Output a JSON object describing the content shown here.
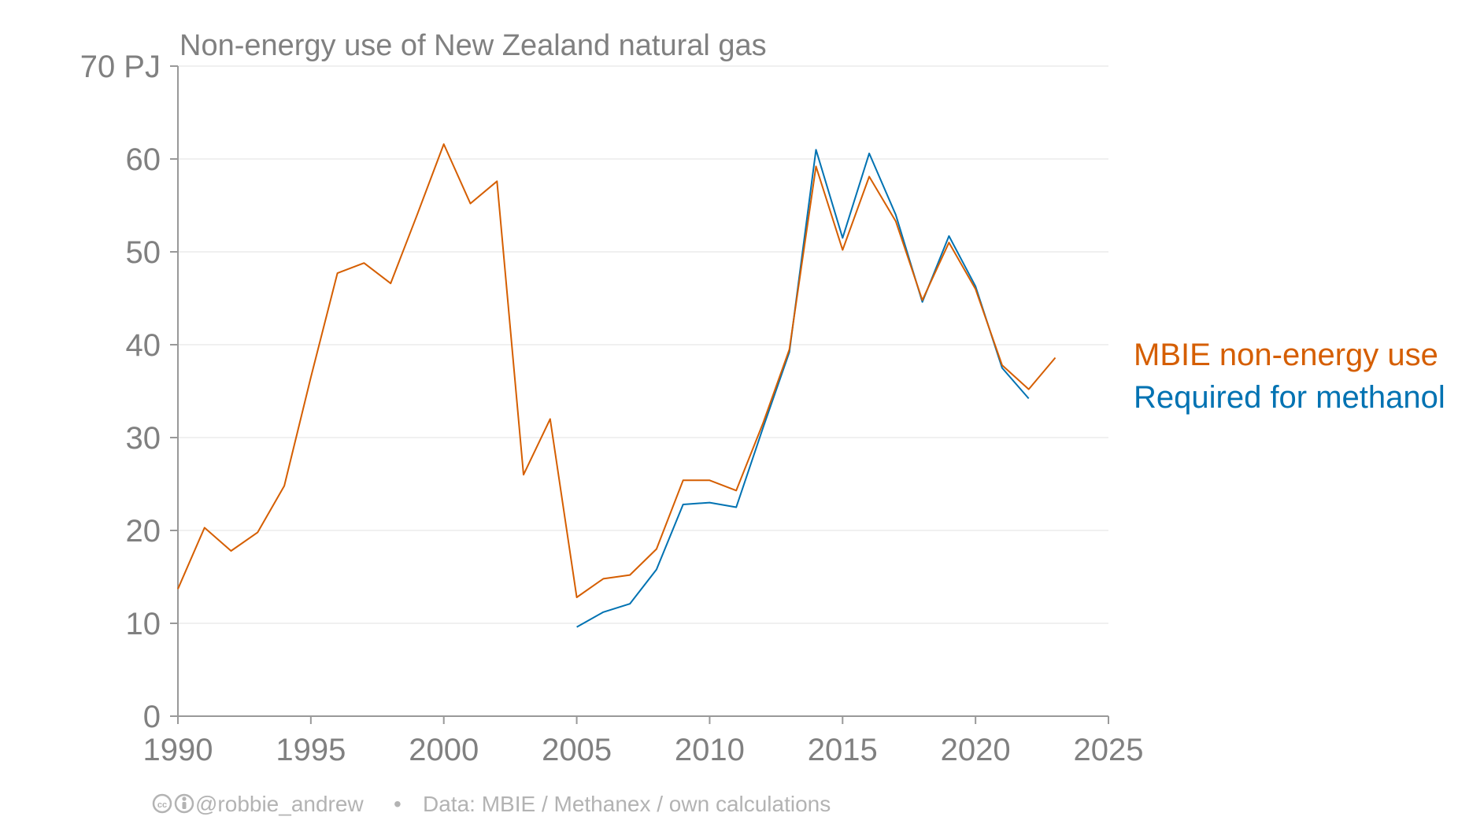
{
  "chart_data": {
    "type": "line",
    "title": "Non-energy use of New Zealand natural gas",
    "xlabel": "",
    "ylabel": "",
    "xlim": [
      1990,
      2025
    ],
    "ylim": [
      0,
      70
    ],
    "x_ticks": [
      1990,
      1995,
      2000,
      2005,
      2010,
      2015,
      2020,
      2025
    ],
    "y_ticks": [
      0,
      10,
      20,
      30,
      40,
      50,
      60,
      70
    ],
    "y_tick_labels": [
      "0",
      "10",
      "20",
      "30",
      "40",
      "50",
      "60",
      "70 PJ"
    ],
    "grid": "horizontal",
    "legend_placement": "right",
    "series": [
      {
        "name": "MBIE non-energy use",
        "color": "#d55e00",
        "x": [
          1990,
          1991,
          1992,
          1993,
          1994,
          1995,
          1996,
          1997,
          1998,
          1999,
          2000,
          2001,
          2002,
          2003,
          2004,
          2005,
          2006,
          2007,
          2008,
          2009,
          2010,
          2011,
          2012,
          2013,
          2014,
          2015,
          2016,
          2017,
          2018,
          2019,
          2020,
          2021,
          2022,
          2023
        ],
        "values": [
          13.7,
          20.3,
          17.8,
          19.8,
          24.8,
          36.5,
          47.7,
          48.8,
          46.6,
          54.0,
          61.6,
          55.2,
          57.6,
          26.0,
          32.0,
          12.8,
          14.8,
          15.2,
          18.0,
          25.4,
          25.4,
          24.3,
          31.5,
          39.5,
          59.2,
          50.2,
          58.1,
          53.3,
          44.8,
          51.0,
          46.0,
          37.8,
          35.2,
          38.6
        ]
      },
      {
        "name": "Required for methanol",
        "color": "#0072b2",
        "x": [
          2005,
          2006,
          2007,
          2008,
          2009,
          2010,
          2011,
          2012,
          2013,
          2014,
          2015,
          2016,
          2017,
          2018,
          2019,
          2020,
          2021,
          2022
        ],
        "values": [
          9.6,
          11.2,
          12.1,
          15.8,
          22.8,
          23.0,
          22.5,
          31.0,
          39.2,
          61.0,
          51.5,
          60.6,
          54.0,
          44.6,
          51.7,
          46.3,
          37.5,
          34.2
        ]
      }
    ]
  },
  "footer": {
    "license_icons": "cc-by-icons",
    "attribution": "@robbie_andrew",
    "separator": "•",
    "source": "Data: MBIE / Methanex / own calculations"
  },
  "colors": {
    "text_gray": "#808080",
    "footer_gray": "#b3b3b3",
    "orange": "#d55e00",
    "blue": "#0072b2"
  }
}
